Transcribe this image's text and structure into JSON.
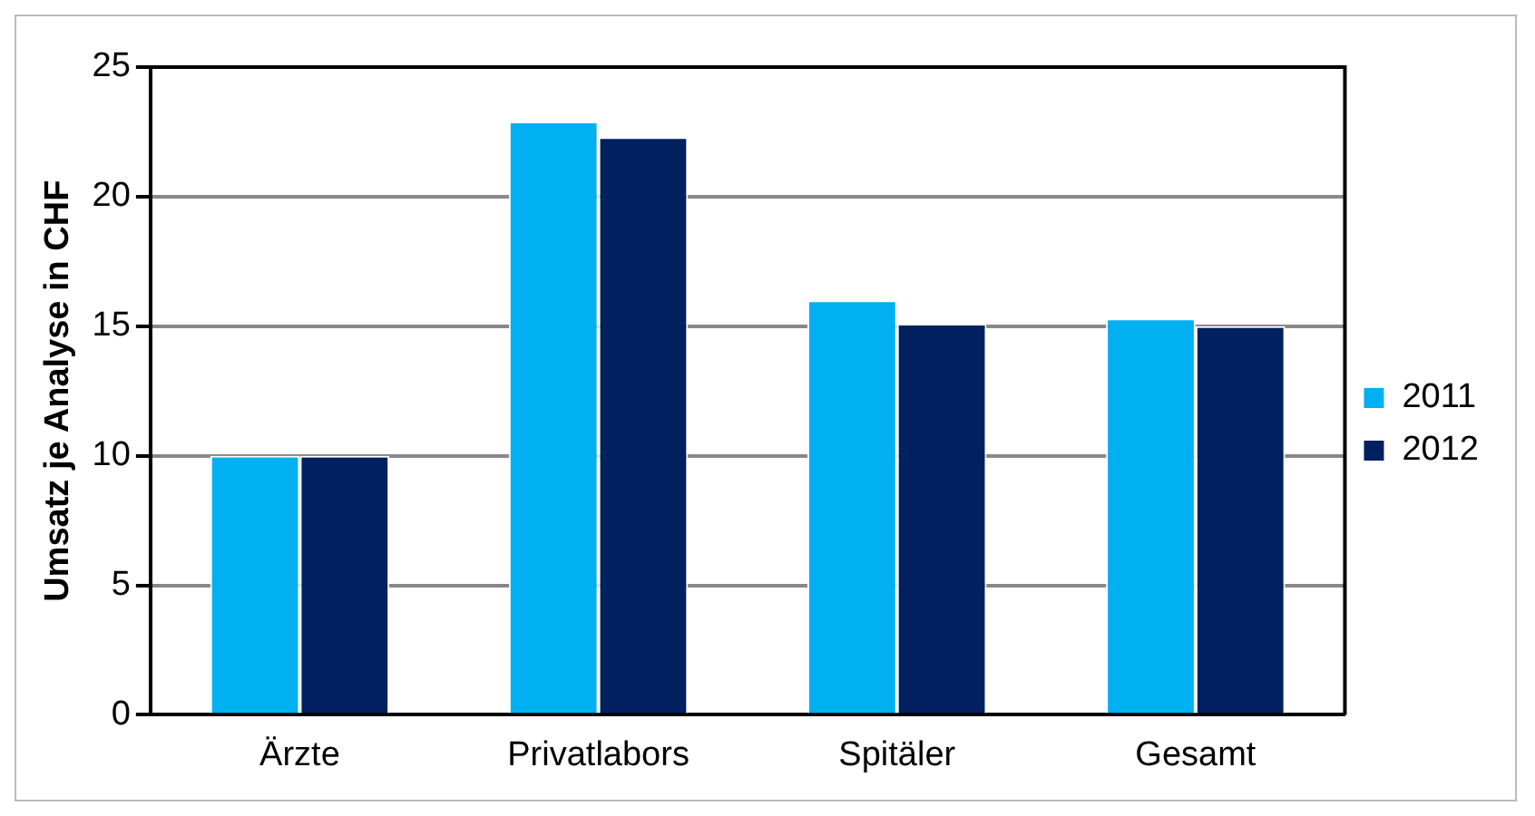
{
  "chart_data": {
    "type": "bar",
    "ylabel": "Umsatz je Analyse in CHF",
    "categories": [
      "Ärzte",
      "Privatlabors",
      "Spitäler",
      "Gesamt"
    ],
    "series": [
      {
        "name": "2011",
        "color": "#00b0f0",
        "values": [
          10.0,
          22.9,
          16.0,
          15.3
        ]
      },
      {
        "name": "2012",
        "color": "#002060",
        "values": [
          10.0,
          22.3,
          15.1,
          15.0
        ]
      }
    ],
    "ylim": [
      0,
      25
    ],
    "yticks": [
      0,
      5,
      10,
      15,
      20,
      25
    ],
    "grid": "y",
    "legend": "right"
  }
}
